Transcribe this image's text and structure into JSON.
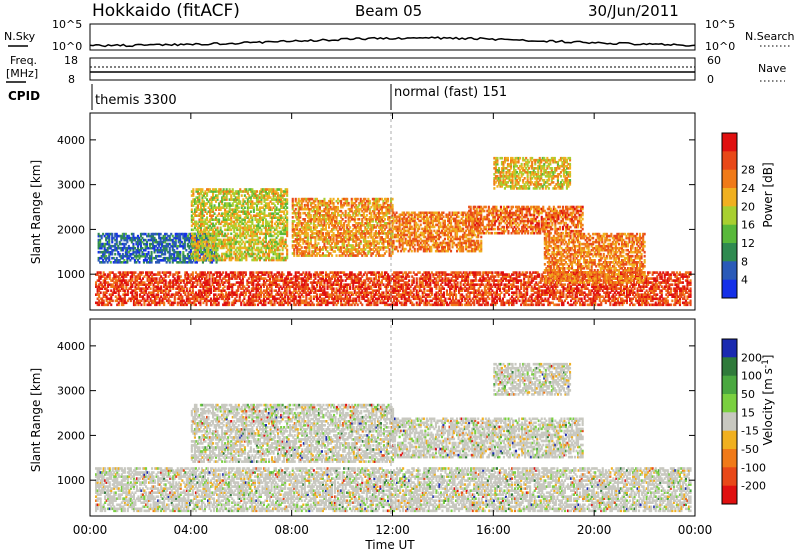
{
  "header": {
    "station": "Hokkaido (fitACF)",
    "beam": "Beam 05",
    "date": "30/Jun/2011"
  },
  "noise_panel": {
    "left_label": "N.Sky",
    "right_label": "N.Search",
    "left_ticks": [
      "10^5",
      "10^0"
    ],
    "right_ticks": [
      "10^5",
      "10^0"
    ]
  },
  "freq_panel": {
    "left_label_line1": "Freq.",
    "left_label_line2": "[MHz]",
    "right_label": "Nave",
    "left_ticks": [
      "18",
      "8"
    ],
    "right_ticks": [
      "60",
      "0"
    ]
  },
  "cpid": {
    "label": "CPID",
    "modes": [
      {
        "name": "themis 3300",
        "start_hour": 0
      },
      {
        "name": "normal (fast) 151",
        "start_hour": 12
      }
    ]
  },
  "chart_data": [
    {
      "type": "heatmap",
      "panel": "power",
      "ylabel": "Slant Range [km]",
      "yticks": [
        1000,
        2000,
        3000,
        4000
      ],
      "ylim": [
        200,
        4600
      ],
      "xlabel": "Time UT",
      "xticks": [
        "00:00",
        "04:00",
        "08:00",
        "12:00",
        "16:00",
        "20:00",
        "00:00"
      ],
      "xlim_hours": [
        0,
        24
      ],
      "colorbar": {
        "label": "Power [dB]",
        "ticks": [
          "4",
          "8",
          "12",
          "16",
          "20",
          "24",
          "28"
        ],
        "colors": [
          "#1530e8",
          "#2a5ab8",
          "#2f8a50",
          "#58b83a",
          "#a8cf30",
          "#f0b020",
          "#f07a18",
          "#e84818",
          "#e01010"
        ]
      },
      "structures": [
        {
          "t0": 0.2,
          "t1": 23.8,
          "r0": 300,
          "r1": 1050,
          "level": 0.9
        },
        {
          "t0": 0.3,
          "t1": 5.0,
          "r0": 1250,
          "r1": 1900,
          "level": 0.15
        },
        {
          "t0": 4.0,
          "t1": 7.8,
          "r0": 1300,
          "r1": 2900,
          "level": 0.55
        },
        {
          "t0": 8.0,
          "t1": 12.0,
          "r0": 1400,
          "r1": 2700,
          "level": 0.7
        },
        {
          "t0": 12.0,
          "t1": 15.5,
          "r0": 1500,
          "r1": 2400,
          "level": 0.75
        },
        {
          "t0": 15.0,
          "t1": 19.5,
          "r0": 1900,
          "r1": 2500,
          "level": 0.8
        },
        {
          "t0": 16.0,
          "t1": 19.0,
          "r0": 2900,
          "r1": 3600,
          "level": 0.6
        },
        {
          "t0": 18.0,
          "t1": 22.0,
          "r0": 800,
          "r1": 1900,
          "level": 0.75
        }
      ]
    },
    {
      "type": "heatmap",
      "panel": "velocity",
      "ylabel": "Slant Range [km]",
      "yticks": [
        1000,
        2000,
        3000,
        4000
      ],
      "ylim": [
        200,
        4600
      ],
      "xlabel": "Time UT",
      "xticks": [
        "00:00",
        "04:00",
        "08:00",
        "12:00",
        "16:00",
        "20:00",
        "00:00"
      ],
      "xlim_hours": [
        0,
        24
      ],
      "colorbar": {
        "label": "Velocity [m s^-1]",
        "ticks": [
          "200",
          "100",
          "50",
          "15",
          "-15",
          "-50",
          "-100",
          "-200"
        ],
        "colors": [
          "#1a2ab0",
          "#2f7a3a",
          "#4aa840",
          "#7ad040",
          "#c8c8c0",
          "#f0b020",
          "#f07a18",
          "#e84818",
          "#e01010"
        ]
      },
      "structures": [
        {
          "t0": 0.2,
          "t1": 23.8,
          "r0": 300,
          "r1": 1250,
          "level": 0.5
        },
        {
          "t0": 4.0,
          "t1": 12.0,
          "r0": 1400,
          "r1": 2700,
          "level": 0.5
        },
        {
          "t0": 12.0,
          "t1": 19.5,
          "r0": 1500,
          "r1": 2400,
          "level": 0.5
        },
        {
          "t0": 16.0,
          "t1": 19.0,
          "r0": 2900,
          "r1": 3600,
          "level": 0.3
        }
      ]
    }
  ],
  "time_axis_label": "Time UT"
}
